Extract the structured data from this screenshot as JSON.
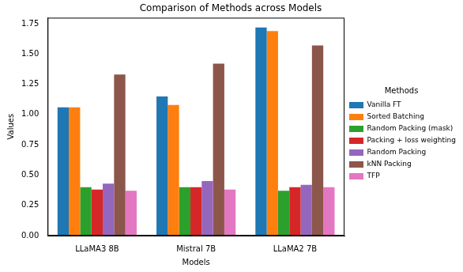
{
  "chart_data": {
    "type": "bar",
    "title": "Comparison of Methods across Models",
    "x_label": "Models",
    "y_label": "Values",
    "legend_title": "Methods",
    "legend": "right",
    "grid": false,
    "categories": [
      "LLaMA3 8B",
      "Mistral 7B",
      "LLaMA2 7B"
    ],
    "series": [
      {
        "name": "Vanilla FT",
        "color": "#1f77b4",
        "values": [
          1.06,
          1.15,
          1.72
        ]
      },
      {
        "name": "Sorted Batching",
        "color": "#ff7f0e",
        "values": [
          1.06,
          1.08,
          1.69
        ]
      },
      {
        "name": "Random Packing (mask)",
        "color": "#2ca02c",
        "values": [
          0.4,
          0.4,
          0.37
        ]
      },
      {
        "name": "Packing + loss weighting",
        "color": "#d62728",
        "values": [
          0.38,
          0.4,
          0.4
        ]
      },
      {
        "name": "Random Packing",
        "color": "#9467bd",
        "values": [
          0.43,
          0.45,
          0.42
        ]
      },
      {
        "name": "kNN Packing",
        "color": "#8c564b",
        "values": [
          1.33,
          1.42,
          1.57
        ]
      },
      {
        "name": "TFP",
        "color": "#e377c2",
        "values": [
          0.37,
          0.38,
          0.4
        ]
      }
    ],
    "ylim": [
      0,
      1.8
    ],
    "yticks": [
      {
        "value": 0,
        "label": "0.00"
      },
      {
        "value": 0.25,
        "label": "0.25"
      },
      {
        "value": 0.5,
        "label": "0.50"
      },
      {
        "value": 0.75,
        "label": "0.75"
      },
      {
        "value": 1,
        "label": "1.00"
      },
      {
        "value": 1.25,
        "label": "1.25"
      },
      {
        "value": 1.5,
        "label": "1.50"
      },
      {
        "value": 1.75,
        "label": "1.75"
      }
    ]
  }
}
